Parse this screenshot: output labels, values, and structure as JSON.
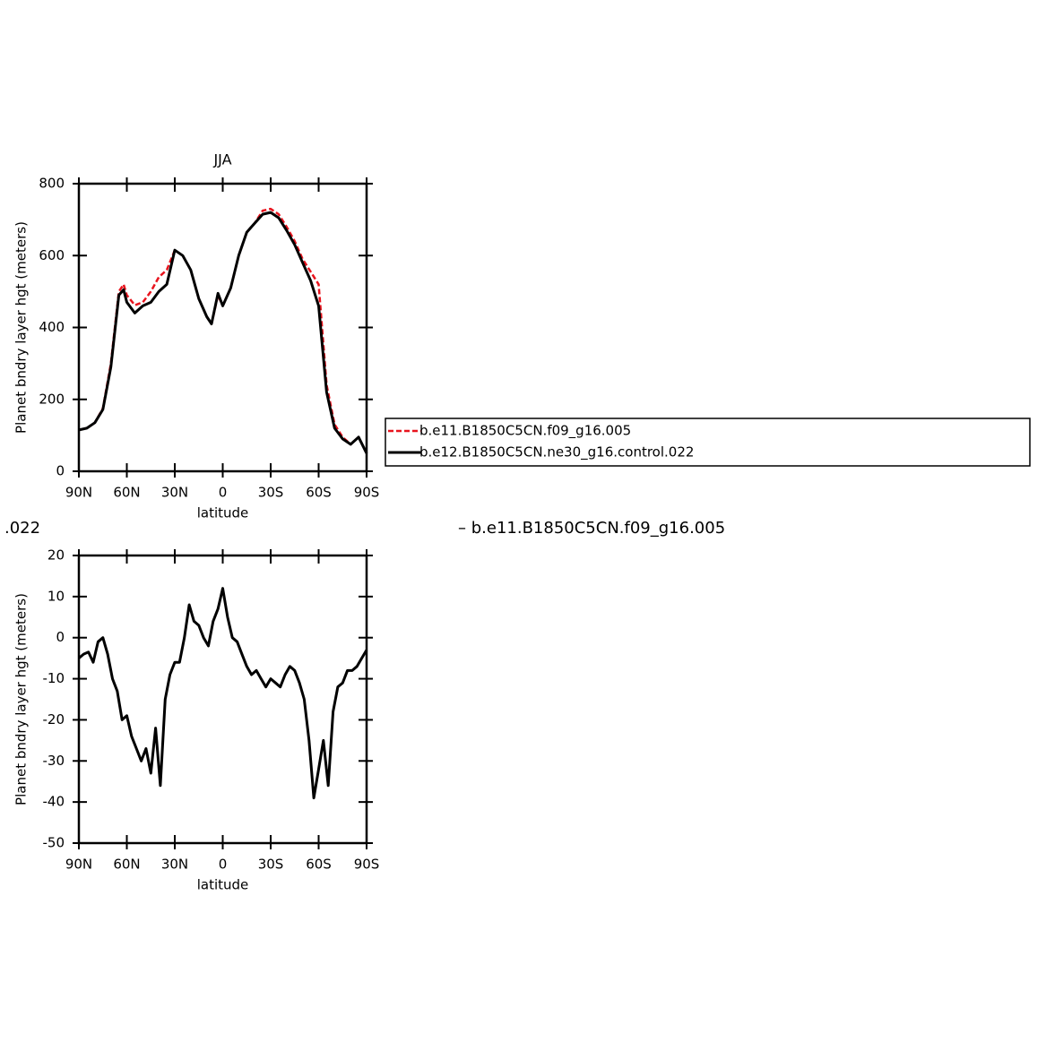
{
  "chart_data": [
    {
      "type": "line",
      "title": "JJA",
      "xlabel": "latitude",
      "ylabel": "Planet bndry layer hgt (meters)",
      "x": [
        90,
        85,
        80,
        75,
        70,
        65,
        62,
        60,
        55,
        50,
        45,
        40,
        35,
        30,
        25,
        20,
        15,
        10,
        7,
        3,
        0,
        -5,
        -10,
        -15,
        -20,
        -25,
        -30,
        -35,
        -40,
        -45,
        -50,
        -55,
        -60,
        -65,
        -70,
        -75,
        -80,
        -85,
        -90
      ],
      "xlim": [
        90,
        -90
      ],
      "xticks": [
        {
          "value": 90,
          "label": "90N"
        },
        {
          "value": 60,
          "label": "60N"
        },
        {
          "value": 30,
          "label": "30N"
        },
        0,
        {
          "value": -30,
          "label": "30S"
        },
        {
          "value": -60,
          "label": "60S"
        },
        {
          "value": -90,
          "label": "90S"
        }
      ],
      "ylim": [
        0,
        800
      ],
      "yticks": [
        0,
        200,
        400,
        600,
        800
      ],
      "legend": "right",
      "series": [
        {
          "name": "b.e11.B1850C5CN.f09_g16.005",
          "color": "#e8141e",
          "style": "dashed",
          "values": [
            115,
            120,
            135,
            175,
            300,
            500,
            520,
            490,
            462,
            470,
            500,
            540,
            560,
            615,
            600,
            560,
            480,
            430,
            410,
            490,
            460,
            510,
            600,
            665,
            690,
            725,
            730,
            715,
            680,
            640,
            590,
            555,
            520,
            240,
            130,
            95,
            75,
            95,
            50
          ]
        },
        {
          "name": "b.e12.B1850C5CN.ne30_g16.control.022",
          "color": "#000000",
          "style": "solid",
          "values": [
            115,
            120,
            135,
            172,
            290,
            490,
            505,
            470,
            440,
            460,
            470,
            500,
            520,
            615,
            600,
            560,
            480,
            430,
            410,
            495,
            460,
            510,
            600,
            665,
            690,
            715,
            720,
            705,
            670,
            630,
            580,
            530,
            460,
            220,
            120,
            90,
            75,
            95,
            50
          ]
        }
      ]
    },
    {
      "type": "line",
      "xlabel": "latitude",
      "ylabel": "Planet bndry layer hgt (meters)",
      "annotations": [
        ".022",
        "– b.e11.B1850C5CN.f09_g16.005"
      ],
      "x": [
        90,
        87,
        84,
        81,
        78,
        75,
        72,
        69,
        66,
        63,
        60,
        57,
        54,
        51,
        48,
        45,
        42,
        39,
        36,
        33,
        30,
        27,
        24,
        21,
        18,
        15,
        12,
        9,
        6,
        3,
        0,
        -3,
        -6,
        -9,
        -12,
        -15,
        -18,
        -21,
        -24,
        -27,
        -30,
        -33,
        -36,
        -39,
        -42,
        -45,
        -48,
        -51,
        -54,
        -57,
        -60,
        -63,
        -66,
        -69,
        -72,
        -75,
        -78,
        -81,
        -84,
        -87,
        -90
      ],
      "xlim": [
        90,
        -90
      ],
      "xticks": [
        {
          "value": 90,
          "label": "90N"
        },
        {
          "value": 60,
          "label": "60N"
        },
        {
          "value": 30,
          "label": "30N"
        },
        0,
        {
          "value": -30,
          "label": "30S"
        },
        {
          "value": -60,
          "label": "60S"
        },
        {
          "value": -90,
          "label": "90S"
        }
      ],
      "ylim": [
        -50,
        20
      ],
      "yticks": [
        -50,
        -40,
        -30,
        -20,
        -10,
        0,
        10,
        20
      ],
      "series": [
        {
          "color": "#000000",
          "style": "solid",
          "values": [
            -5,
            -4,
            -3.5,
            -6,
            -1,
            0,
            -4,
            -10,
            -13,
            -20,
            -19,
            -24,
            -27,
            -30,
            -27,
            -33,
            -22,
            -36,
            -15,
            -9,
            -6,
            -6,
            0,
            8,
            4,
            3,
            0,
            -2,
            4,
            7,
            12,
            5,
            0,
            -1,
            -4,
            -7,
            -9,
            -8,
            -10,
            -12,
            -10,
            -11,
            -12,
            -9,
            -7,
            -8,
            -11,
            -15,
            -25,
            -39,
            -32,
            -25,
            -36,
            -18,
            -12,
            -11,
            -8,
            -8,
            -7,
            -5,
            -3
          ]
        }
      ]
    }
  ]
}
